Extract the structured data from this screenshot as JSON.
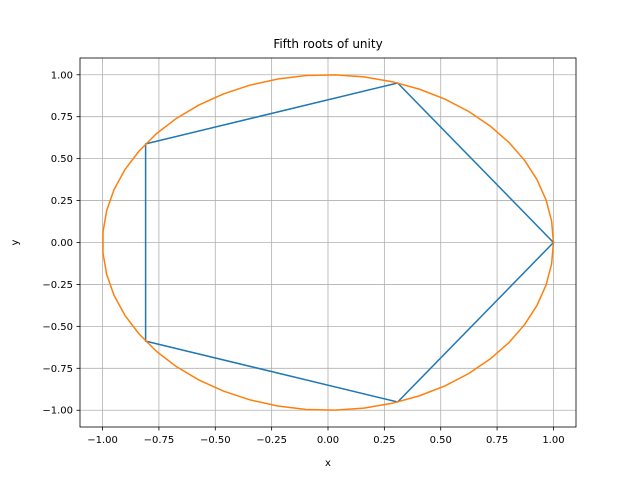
{
  "chart_data": {
    "type": "line",
    "title": "Fifth roots of unity",
    "xlabel": "x",
    "ylabel": "y",
    "xlim": [
      -1.1,
      1.1
    ],
    "ylim": [
      -1.1,
      1.1
    ],
    "xticks": [
      -1.0,
      -0.75,
      -0.5,
      -0.25,
      0.0,
      0.25,
      0.5,
      0.75,
      1.0
    ],
    "yticks": [
      -1.0,
      -0.75,
      -0.5,
      -0.25,
      0.0,
      0.25,
      0.5,
      0.75,
      1.0
    ],
    "xtick_labels": [
      "−1.00",
      "−0.75",
      "−0.50",
      "−0.25",
      "0.00",
      "0.25",
      "0.50",
      "0.75",
      "1.00"
    ],
    "ytick_labels": [
      "−1.00",
      "−0.75",
      "−0.50",
      "−0.25",
      "0.00",
      "0.25",
      "0.50",
      "0.75",
      "1.00"
    ],
    "grid": true,
    "legend": false,
    "series": [
      {
        "color": "#1f77b4",
        "kind": "closed-polygon",
        "x": [
          1.0,
          0.309,
          -0.809,
          -0.809,
          0.309,
          1.0
        ],
        "y": [
          0.0,
          0.951,
          0.588,
          -0.588,
          -0.951,
          0.0
        ]
      },
      {
        "color": "#ff7f0e",
        "kind": "circle",
        "center": [
          0.0,
          0.0
        ],
        "radius": 1.0,
        "samples": 50
      }
    ]
  }
}
